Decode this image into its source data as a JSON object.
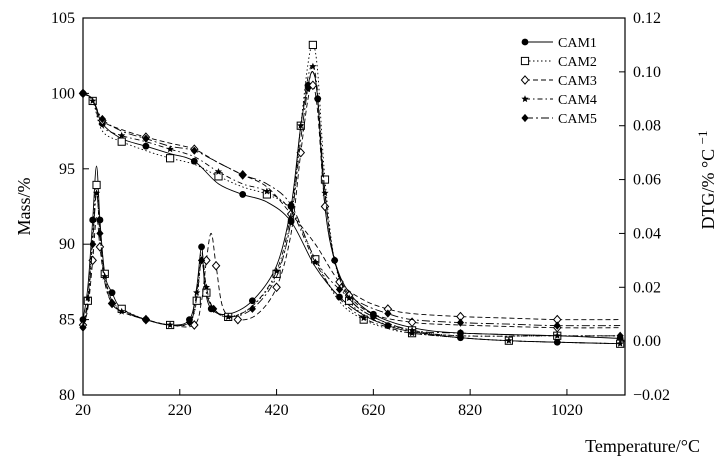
{
  "chart_data": {
    "type": "line",
    "xlabel": "Temperature/°C",
    "ylabel": "Mass/%",
    "y2label": "DTG/% °C",
    "y2label_sup": "−1",
    "xlim": [
      20,
      1140
    ],
    "ylim": [
      80,
      105
    ],
    "y2lim": [
      -0.02,
      0.12
    ],
    "xticks": [
      "20",
      "220",
      "420",
      "620",
      "820",
      "1020"
    ],
    "xtick_values": [
      20,
      220,
      420,
      620,
      820,
      1020
    ],
    "yticks": [
      "80",
      "85",
      "90",
      "95",
      "100",
      "105"
    ],
    "ytick_values": [
      80,
      85,
      90,
      95,
      100,
      105
    ],
    "y2ticks": [
      "−0.02",
      "0.00",
      "0.02",
      "0.04",
      "0.06",
      "0.08",
      "0.10",
      "0.12"
    ],
    "y2tick_values": [
      -0.02,
      0,
      0.02,
      0.04,
      0.06,
      0.08,
      0.1,
      0.12
    ],
    "grid": false,
    "legend_position": "top-right",
    "series": [
      {
        "name": "CAM1",
        "marker": "filled-circle",
        "dash": "solid",
        "mass": [
          [
            20,
            100
          ],
          [
            40,
            99.6
          ],
          [
            60,
            98.0
          ],
          [
            100,
            97.0
          ],
          [
            150,
            96.5
          ],
          [
            200,
            96.0
          ],
          [
            250,
            95.5
          ],
          [
            300,
            94.0
          ],
          [
            350,
            93.3
          ],
          [
            400,
            92.8
          ],
          [
            450,
            91.5
          ],
          [
            500,
            88.5
          ],
          [
            550,
            86.5
          ],
          [
            600,
            85.3
          ],
          [
            650,
            84.6
          ],
          [
            700,
            84.2
          ],
          [
            800,
            83.8
          ],
          [
            900,
            83.6
          ],
          [
            1000,
            83.5
          ],
          [
            1130,
            83.4
          ]
        ],
        "dtg": [
          [
            20,
            0.008
          ],
          [
            30,
            0.02
          ],
          [
            40,
            0.045
          ],
          [
            48,
            0.065
          ],
          [
            55,
            0.045
          ],
          [
            65,
            0.025
          ],
          [
            80,
            0.018
          ],
          [
            100,
            0.012
          ],
          [
            150,
            0.008
          ],
          [
            200,
            0.006
          ],
          [
            240,
            0.008
          ],
          [
            255,
            0.02
          ],
          [
            265,
            0.035
          ],
          [
            272,
            0.02
          ],
          [
            285,
            0.012
          ],
          [
            320,
            0.01
          ],
          [
            370,
            0.015
          ],
          [
            420,
            0.028
          ],
          [
            450,
            0.05
          ],
          [
            470,
            0.08
          ],
          [
            485,
            0.095
          ],
          [
            495,
            0.1
          ],
          [
            505,
            0.09
          ],
          [
            520,
            0.05
          ],
          [
            540,
            0.03
          ],
          [
            570,
            0.018
          ],
          [
            620,
            0.01
          ],
          [
            700,
            0.005
          ],
          [
            800,
            0.003
          ],
          [
            1000,
            0.002
          ],
          [
            1130,
            0.001
          ]
        ]
      },
      {
        "name": "CAM2",
        "marker": "open-square",
        "dash": "dotted",
        "mass": [
          [
            20,
            100
          ],
          [
            40,
            99.5
          ],
          [
            60,
            97.5
          ],
          [
            100,
            96.8
          ],
          [
            150,
            96.2
          ],
          [
            200,
            95.7
          ],
          [
            250,
            95.3
          ],
          [
            300,
            94.5
          ],
          [
            350,
            93.8
          ],
          [
            400,
            93.3
          ],
          [
            450,
            92.3
          ],
          [
            500,
            89.0
          ],
          [
            550,
            86.2
          ],
          [
            600,
            85.0
          ],
          [
            650,
            84.4
          ],
          [
            700,
            84.1
          ],
          [
            800,
            83.8
          ],
          [
            900,
            83.6
          ],
          [
            1000,
            83.5
          ],
          [
            1130,
            83.4
          ]
        ],
        "dtg": [
          [
            20,
            0.006
          ],
          [
            30,
            0.015
          ],
          [
            40,
            0.04
          ],
          [
            48,
            0.058
          ],
          [
            55,
            0.042
          ],
          [
            65,
            0.025
          ],
          [
            80,
            0.015
          ],
          [
            100,
            0.012
          ],
          [
            150,
            0.008
          ],
          [
            200,
            0.006
          ],
          [
            240,
            0.007
          ],
          [
            255,
            0.015
          ],
          [
            265,
            0.03
          ],
          [
            275,
            0.018
          ],
          [
            290,
            0.012
          ],
          [
            320,
            0.009
          ],
          [
            370,
            0.013
          ],
          [
            420,
            0.025
          ],
          [
            450,
            0.045
          ],
          [
            470,
            0.08
          ],
          [
            485,
            0.103
          ],
          [
            495,
            0.11
          ],
          [
            505,
            0.1
          ],
          [
            520,
            0.06
          ],
          [
            540,
            0.03
          ],
          [
            570,
            0.015
          ],
          [
            620,
            0.008
          ],
          [
            700,
            0.004
          ],
          [
            800,
            0.002
          ],
          [
            1000,
            0.002
          ],
          [
            1130,
            0.002
          ]
        ]
      },
      {
        "name": "CAM3",
        "marker": "open-diamond",
        "dash": "dashed",
        "mass": [
          [
            20,
            100
          ],
          [
            40,
            99.6
          ],
          [
            60,
            98.2
          ],
          [
            100,
            97.6
          ],
          [
            150,
            97.1
          ],
          [
            200,
            96.7
          ],
          [
            250,
            96.3
          ],
          [
            300,
            95.4
          ],
          [
            350,
            94.6
          ],
          [
            400,
            93.8
          ],
          [
            450,
            92.0
          ],
          [
            500,
            90.0
          ],
          [
            550,
            87.5
          ],
          [
            600,
            86.3
          ],
          [
            650,
            85.7
          ],
          [
            700,
            85.4
          ],
          [
            800,
            85.2
          ],
          [
            900,
            85.1
          ],
          [
            1000,
            85.0
          ],
          [
            1130,
            85.0
          ]
        ],
        "dtg": [
          [
            20,
            0.006
          ],
          [
            30,
            0.012
          ],
          [
            40,
            0.03
          ],
          [
            48,
            0.046
          ],
          [
            55,
            0.035
          ],
          [
            65,
            0.022
          ],
          [
            80,
            0.014
          ],
          [
            100,
            0.011
          ],
          [
            150,
            0.008
          ],
          [
            200,
            0.006
          ],
          [
            250,
            0.006
          ],
          [
            265,
            0.015
          ],
          [
            275,
            0.03
          ],
          [
            285,
            0.04
          ],
          [
            295,
            0.028
          ],
          [
            310,
            0.012
          ],
          [
            340,
            0.008
          ],
          [
            380,
            0.01
          ],
          [
            420,
            0.02
          ],
          [
            450,
            0.04
          ],
          [
            470,
            0.07
          ],
          [
            485,
            0.09
          ],
          [
            495,
            0.095
          ],
          [
            505,
            0.085
          ],
          [
            520,
            0.05
          ],
          [
            540,
            0.03
          ],
          [
            570,
            0.017
          ],
          [
            620,
            0.01
          ],
          [
            700,
            0.007
          ],
          [
            800,
            0.006
          ],
          [
            1000,
            0.005
          ],
          [
            1130,
            0.005
          ]
        ]
      },
      {
        "name": "CAM4",
        "marker": "star",
        "dash": "dash-dot",
        "mass": [
          [
            20,
            100
          ],
          [
            40,
            99.5
          ],
          [
            60,
            97.8
          ],
          [
            100,
            97.2
          ],
          [
            150,
            96.8
          ],
          [
            200,
            96.3
          ],
          [
            250,
            95.8
          ],
          [
            300,
            94.8
          ],
          [
            350,
            94.0
          ],
          [
            400,
            93.5
          ],
          [
            450,
            92.2
          ],
          [
            500,
            88.8
          ],
          [
            550,
            86.4
          ],
          [
            600,
            85.1
          ],
          [
            650,
            84.5
          ],
          [
            700,
            84.1
          ],
          [
            800,
            83.8
          ],
          [
            900,
            83.6
          ],
          [
            1000,
            83.5
          ],
          [
            1130,
            83.4
          ]
        ],
        "dtg": [
          [
            20,
            0.006
          ],
          [
            30,
            0.016
          ],
          [
            40,
            0.038
          ],
          [
            48,
            0.055
          ],
          [
            55,
            0.04
          ],
          [
            65,
            0.024
          ],
          [
            80,
            0.015
          ],
          [
            100,
            0.011
          ],
          [
            150,
            0.008
          ],
          [
            200,
            0.006
          ],
          [
            240,
            0.007
          ],
          [
            255,
            0.018
          ],
          [
            265,
            0.033
          ],
          [
            275,
            0.02
          ],
          [
            290,
            0.012
          ],
          [
            320,
            0.009
          ],
          [
            370,
            0.013
          ],
          [
            420,
            0.026
          ],
          [
            450,
            0.048
          ],
          [
            470,
            0.08
          ],
          [
            485,
            0.098
          ],
          [
            495,
            0.102
          ],
          [
            505,
            0.092
          ],
          [
            520,
            0.055
          ],
          [
            540,
            0.03
          ],
          [
            570,
            0.016
          ],
          [
            620,
            0.009
          ],
          [
            700,
            0.004
          ],
          [
            800,
            0.002
          ],
          [
            1000,
            0.002
          ],
          [
            1130,
            0.002
          ]
        ]
      },
      {
        "name": "CAM5",
        "marker": "filled-diamond",
        "dash": "long-dash-dot",
        "mass": [
          [
            20,
            100
          ],
          [
            40,
            99.6
          ],
          [
            60,
            98.3
          ],
          [
            100,
            97.5
          ],
          [
            150,
            97.0
          ],
          [
            200,
            96.5
          ],
          [
            250,
            96.2
          ],
          [
            300,
            95.4
          ],
          [
            350,
            94.6
          ],
          [
            400,
            94.0
          ],
          [
            450,
            92.6
          ],
          [
            500,
            89.0
          ],
          [
            550,
            87.0
          ],
          [
            600,
            86.0
          ],
          [
            650,
            85.4
          ],
          [
            700,
            85.0
          ],
          [
            800,
            84.8
          ],
          [
            900,
            84.7
          ],
          [
            1000,
            84.6
          ],
          [
            1130,
            84.6
          ]
        ],
        "dtg": [
          [
            20,
            0.005
          ],
          [
            30,
            0.014
          ],
          [
            40,
            0.036
          ],
          [
            48,
            0.055
          ],
          [
            55,
            0.04
          ],
          [
            65,
            0.022
          ],
          [
            80,
            0.014
          ],
          [
            100,
            0.011
          ],
          [
            150,
            0.008
          ],
          [
            200,
            0.006
          ],
          [
            240,
            0.007
          ],
          [
            255,
            0.016
          ],
          [
            265,
            0.03
          ],
          [
            275,
            0.018
          ],
          [
            290,
            0.012
          ],
          [
            320,
            0.009
          ],
          [
            370,
            0.012
          ],
          [
            420,
            0.024
          ],
          [
            450,
            0.045
          ],
          [
            470,
            0.075
          ],
          [
            485,
            0.094
          ],
          [
            495,
            0.1
          ],
          [
            505,
            0.09
          ],
          [
            520,
            0.055
          ],
          [
            540,
            0.03
          ],
          [
            570,
            0.016
          ],
          [
            620,
            0.009
          ],
          [
            700,
            0.004
          ],
          [
            800,
            0.003
          ],
          [
            1000,
            0.002
          ],
          [
            1130,
            0.002
          ]
        ]
      }
    ]
  }
}
